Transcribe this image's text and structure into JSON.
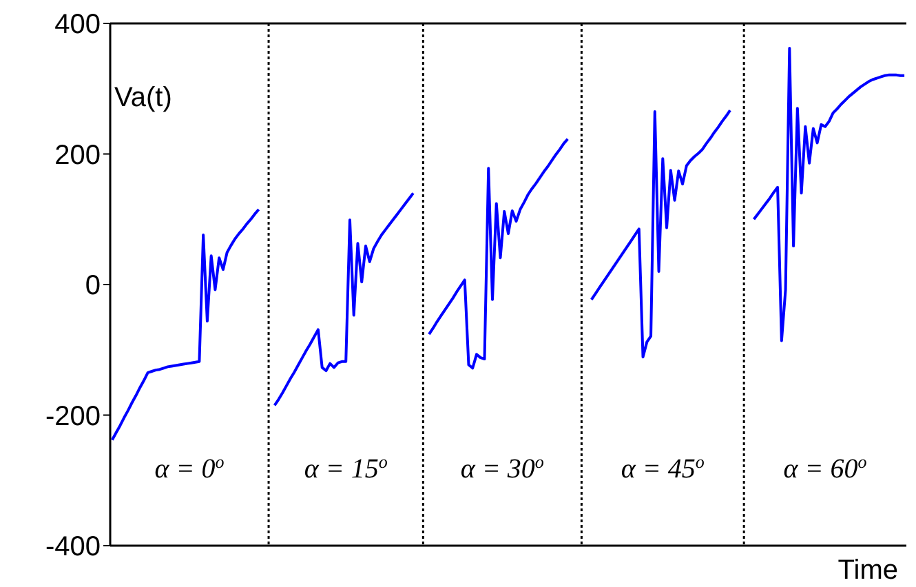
{
  "chart_data": {
    "type": "line",
    "xlabel": "Time",
    "ylabel": "Va(t)",
    "ylim": [
      -400,
      400
    ],
    "yticks": [
      -400,
      -200,
      0,
      200,
      400
    ],
    "tick_labels": "y",
    "grid": false,
    "marker": "none",
    "line_style": "solid",
    "categories": [
      null,
      null,
      null,
      null,
      null,
      null,
      null,
      null,
      null,
      null,
      null,
      null,
      null,
      null,
      null,
      null,
      null,
      null,
      null,
      null,
      null,
      null,
      null,
      null,
      null,
      null,
      null,
      null,
      null,
      null,
      null,
      null,
      null,
      null,
      null,
      null,
      null,
      null,
      null,
      null,
      null,
      null,
      null,
      null,
      null,
      null,
      null,
      null,
      null,
      null,
      null,
      null,
      null,
      null,
      null,
      null,
      null,
      null,
      null,
      null,
      null,
      null,
      null,
      null,
      null,
      null,
      null,
      null,
      null,
      null,
      null,
      null,
      null,
      null,
      null,
      null,
      null,
      null,
      null,
      null,
      null,
      null,
      null,
      null,
      null,
      null,
      null,
      null,
      null,
      null,
      null,
      null,
      null,
      null,
      null,
      null,
      null,
      null,
      null,
      null,
      null,
      null,
      null,
      null,
      null,
      null,
      null,
      null,
      null,
      null,
      null,
      null,
      null,
      null,
      null,
      null,
      null,
      null,
      null,
      null,
      null,
      null,
      null,
      null,
      null,
      null,
      null,
      null,
      null,
      null,
      null,
      null,
      null,
      null,
      null,
      null,
      null,
      null,
      null,
      null,
      null,
      null,
      null,
      null,
      null,
      null,
      null,
      null,
      null,
      null,
      null,
      null,
      null,
      null,
      null,
      null,
      null,
      null,
      null,
      null,
      null,
      null,
      null,
      null,
      null,
      null,
      null,
      null,
      null,
      null,
      null,
      null,
      null,
      null,
      null,
      null,
      null,
      null,
      null,
      null,
      null,
      null,
      null,
      null,
      null,
      null,
      null,
      null,
      null,
      null,
      null,
      null,
      null,
      null,
      null,
      null,
      null,
      null,
      null,
      null,
      null
    ],
    "series": [
      {
        "color": "#0000ff",
        "values": [
          -238,
          -227,
          -216,
          -204,
          -193,
          -181,
          -170,
          -158,
          -147,
          -135,
          -133,
          -131,
          -130,
          -128,
          -126,
          -125,
          -124,
          -123,
          -122,
          -121,
          -120,
          -119,
          -118,
          76,
          -56,
          44,
          -8,
          41,
          23,
          49,
          60,
          70,
          78,
          85,
          93,
          100,
          108,
          115,
          null,
          null,
          null,
          -185,
          -176,
          -166,
          -155,
          -144,
          -134,
          -123,
          -112,
          -101,
          -91,
          -80,
          -69,
          -127,
          -132,
          -121,
          -127,
          -120,
          -118,
          -118,
          99,
          -47,
          63,
          4,
          59,
          35,
          55,
          66,
          76,
          84,
          92,
          100,
          108,
          116,
          124,
          132,
          140,
          null,
          null,
          null,
          -76,
          -67,
          -57,
          -48,
          -39,
          -30,
          -21,
          -11,
          -2,
          7,
          -123,
          -128,
          -107,
          -112,
          -114,
          178,
          -23,
          124,
          41,
          112,
          78,
          113,
          97,
          115,
          126,
          138,
          147,
          155,
          164,
          173,
          181,
          190,
          199,
          207,
          216,
          223,
          null,
          null,
          null,
          null,
          null,
          -23,
          -14,
          -5,
          4,
          13,
          22,
          31,
          40,
          49,
          58,
          67,
          76,
          85,
          -111,
          -88,
          -79,
          265,
          20,
          193,
          87,
          175,
          129,
          174,
          154,
          182,
          190,
          196,
          201,
          207,
          216,
          224,
          233,
          241,
          250,
          258,
          267,
          null,
          null,
          null,
          null,
          null,
          100,
          108,
          116,
          124,
          132,
          141,
          149,
          -86,
          -8,
          362,
          59,
          270,
          140,
          242,
          186,
          239,
          217,
          245,
          242,
          250,
          263,
          269,
          276,
          282,
          288,
          293,
          298,
          303,
          307,
          311,
          314,
          316,
          318,
          320,
          321,
          321,
          321,
          320,
          320
        ]
      }
    ],
    "annotations": [
      "α = 0$^{o}$",
      "α = 15$^{o}$",
      "α = 30$^{o}$",
      "α = 45$^{o}$",
      "α = 60$^{o}$"
    ]
  }
}
